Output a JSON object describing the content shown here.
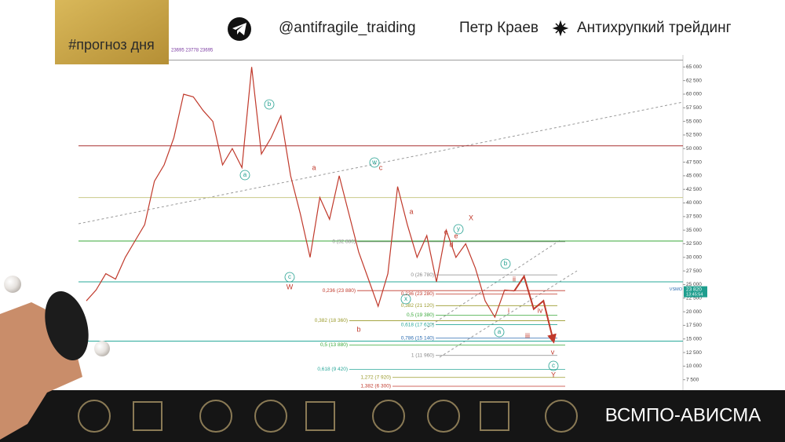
{
  "header": {
    "hashtag": "#прогноз дня",
    "channel": "@antifragile_traiding",
    "author": "Петр Краев",
    "project": "Антихрупкий трейдинг"
  },
  "footer": {
    "company": "ВСМПО-АВИСМА"
  },
  "chart_data": {
    "type": "line",
    "ohlc_text": "23695  23778  23695",
    "categories": [
      null,
      null,
      null,
      null,
      null,
      null,
      null,
      null,
      null,
      null,
      null,
      null,
      null,
      null,
      null,
      null,
      null,
      null,
      null,
      null,
      null,
      null,
      null,
      null,
      null,
      null,
      null,
      null,
      null,
      null,
      null,
      null,
      null,
      null,
      null,
      null,
      null,
      null,
      null,
      null,
      null,
      null,
      null,
      null,
      null,
      null,
      null,
      null,
      null
    ],
    "series": [
      {
        "color": "#c0392b",
        "values": [
          22000,
          24000,
          27000,
          26000,
          30000,
          33000,
          36000,
          44000,
          47000,
          52000,
          60000,
          59500,
          57000,
          55000,
          47000,
          50000,
          46500,
          65000,
          49000,
          52000,
          56000,
          45000,
          38000,
          30000,
          41000,
          37000,
          45000,
          38000,
          31000,
          26000,
          21000,
          27000,
          43000,
          36000,
          30000,
          34000,
          25500,
          35000,
          30000,
          32500,
          28000,
          22000,
          19000,
          24000,
          23820,
          null,
          null,
          null,
          null
        ]
      },
      {
        "color": "#c0392b",
        "values": [
          null,
          null,
          null,
          null,
          null,
          null,
          null,
          null,
          null,
          null,
          null,
          null,
          null,
          null,
          null,
          null,
          null,
          null,
          null,
          null,
          null,
          null,
          null,
          null,
          null,
          null,
          null,
          null,
          null,
          null,
          null,
          null,
          null,
          null,
          null,
          null,
          null,
          null,
          null,
          null,
          null,
          null,
          null,
          null,
          23820,
          26500,
          20500,
          22000,
          14800
        ]
      }
    ],
    "ylim": [
      5000,
      67500
    ],
    "yticks": [
      {
        "value": 7500,
        "label": "7 500"
      },
      {
        "value": 10000,
        "label": "10 000"
      },
      {
        "value": 12500,
        "label": "12 500"
      },
      {
        "value": 15000,
        "label": "15 000"
      },
      {
        "value": 17500,
        "label": "17 500"
      },
      {
        "value": 20000,
        "label": "20 000"
      },
      {
        "value": 22500,
        "label": "22 500"
      },
      {
        "value": 25000,
        "label": "25 000"
      },
      {
        "value": 27500,
        "label": "27 500"
      },
      {
        "value": 30000,
        "label": "30 000"
      },
      {
        "value": 32500,
        "label": "32 500"
      },
      {
        "value": 35000,
        "label": "35 000"
      },
      {
        "value": 37500,
        "label": "37 500"
      },
      {
        "value": 40000,
        "label": "40 000"
      },
      {
        "value": 42500,
        "label": "42 500"
      },
      {
        "value": 45000,
        "label": "45 000"
      },
      {
        "value": 47500,
        "label": "47 500"
      },
      {
        "value": 50000,
        "label": "50 000"
      },
      {
        "value": 52500,
        "label": "52 500"
      },
      {
        "value": 55000,
        "label": "55 000"
      },
      {
        "value": 57500,
        "label": "57 500"
      },
      {
        "value": 60000,
        "label": "60 000"
      },
      {
        "value": 62500,
        "label": "62 500"
      },
      {
        "value": 65000,
        "label": "65 000"
      }
    ],
    "grid": false,
    "hlines": [
      {
        "value": 66250,
        "color": "#999999"
      },
      {
        "value": 50500,
        "color": "#a83030"
      },
      {
        "value": 41000,
        "color": "#c9c98a"
      },
      {
        "value": 33000,
        "color": "#3aa83a"
      },
      {
        "value": 25500,
        "color": "#2aa89a"
      },
      {
        "value": 14600,
        "color": "#2aa89a"
      }
    ],
    "fib_levels": [
      {
        "value": 32880,
        "label": "0 (32 880)",
        "color": "#888888"
      },
      {
        "value": 23880,
        "label": "0,236 (23 880)",
        "color": "#c0392b"
      },
      {
        "value": 18360,
        "label": "0,382 (18 360)",
        "color": "#9a9a2a"
      },
      {
        "value": 13880,
        "label": "0,5 (13 880)",
        "color": "#3aa83a"
      },
      {
        "value": 9420,
        "label": "0,618 (9 420)",
        "color": "#2aa89a"
      },
      {
        "value": 7920,
        "label": "1,272 (7 920)",
        "color": "#9a9a2a"
      },
      {
        "value": 6300,
        "label": "1,382 (6 300)",
        "color": "#c0392b"
      },
      {
        "value": 26780,
        "label": "0 (26 780)",
        "color": "#888888"
      },
      {
        "value": 23280,
        "label": "0,236 (23 280)",
        "color": "#c0392b"
      },
      {
        "value": 21120,
        "label": "0,382 (21 120)",
        "color": "#9a9a2a"
      },
      {
        "value": 19380,
        "label": "0,5 (19 380)",
        "color": "#3aa83a"
      },
      {
        "value": 17620,
        "label": "0,618 (17 620)",
        "color": "#2aa89a"
      },
      {
        "value": 15140,
        "label": "0,786 (15 140)",
        "color": "#2a6bb0"
      },
      {
        "value": 11960,
        "label": "1 (11 960)",
        "color": "#888888"
      }
    ],
    "last_price": {
      "ticker": "VSMO",
      "value": 23820,
      "label": "23 820",
      "time": "13:45:54"
    },
    "annotations": [
      "a",
      "b",
      "c",
      "W",
      "a",
      "w",
      "c",
      "a",
      "c",
      "y",
      "e",
      "X",
      "d",
      "b",
      "x",
      "b",
      "a",
      "ii",
      "i",
      "iv",
      "iii",
      "v",
      "c",
      "Y"
    ]
  }
}
